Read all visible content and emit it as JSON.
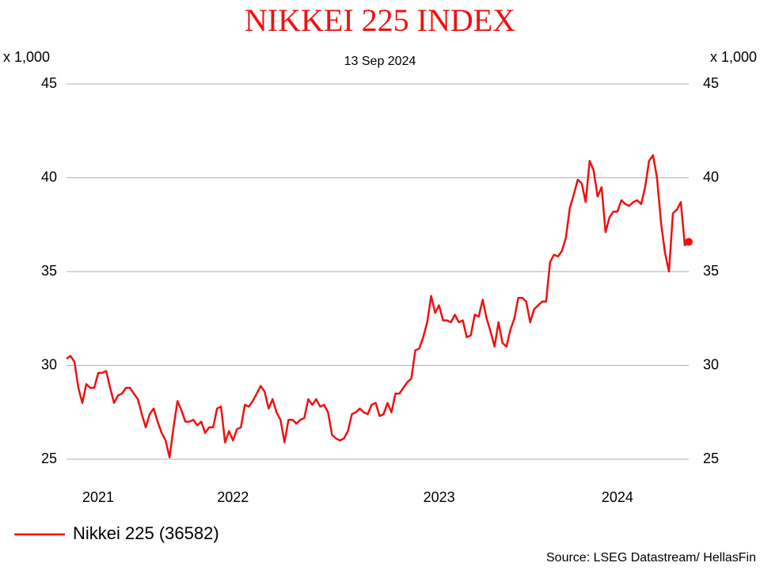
{
  "chart_data": {
    "type": "line",
    "title": "NIKKEI 225 INDEX",
    "subtitle": "13 Sep 2024",
    "y_unit": "x 1,000",
    "source": "Source: LSEG Datastream/ HellasFin",
    "ylim": [
      25,
      45
    ],
    "yticks": [
      25,
      30,
      35,
      40,
      45
    ],
    "grid": true,
    "legend": "bottom-left",
    "end_marker": true,
    "categories": [
      null,
      null,
      null,
      null,
      null,
      null,
      null,
      null,
      "2021",
      null,
      null,
      null,
      null,
      null,
      null,
      null,
      null,
      null,
      null,
      null,
      null,
      null,
      null,
      null,
      null,
      null,
      null,
      null,
      null,
      null,
      null,
      null,
      null,
      null,
      null,
      null,
      null,
      null,
      null,
      null,
      null,
      null,
      "2022",
      null,
      null,
      null,
      null,
      null,
      null,
      null,
      null,
      null,
      null,
      null,
      null,
      null,
      null,
      null,
      null,
      null,
      null,
      null,
      null,
      null,
      null,
      null,
      null,
      null,
      null,
      null,
      null,
      null,
      null,
      null,
      null,
      null,
      null,
      null,
      null,
      null,
      null,
      null,
      null,
      null,
      null,
      null,
      null,
      null,
      null,
      null,
      null,
      null,
      null,
      null,
      "2023",
      null,
      null,
      null,
      null,
      null,
      null,
      null,
      null,
      null,
      null,
      null,
      null,
      null,
      null,
      null,
      null,
      null,
      null,
      null,
      null,
      null,
      null,
      null,
      null,
      null,
      null,
      null,
      null,
      null,
      null,
      null,
      null,
      null,
      null,
      null,
      null,
      null,
      null,
      null,
      null,
      null,
      null,
      null,
      null,
      "2024",
      null,
      null,
      null,
      null,
      null,
      null,
      null,
      null,
      null,
      null,
      null,
      null,
      null,
      null,
      null,
      null,
      null,
      null
    ],
    "series": [
      {
        "name": "Nikkei 225 (36582)",
        "color": "#ee1111",
        "values": [
          30.36,
          30.5,
          30.2,
          28.8,
          28.0,
          29.0,
          28.8,
          28.8,
          29.6,
          29.6,
          29.7,
          28.8,
          28.0,
          28.4,
          28.5,
          28.8,
          28.8,
          28.5,
          28.2,
          27.4,
          26.7,
          27.4,
          27.7,
          27.0,
          26.4,
          26.0,
          25.1,
          26.7,
          28.1,
          27.6,
          27.0,
          27.0,
          27.1,
          26.8,
          27.0,
          26.4,
          26.7,
          26.7,
          27.7,
          27.8,
          25.9,
          26.5,
          26.0,
          26.6,
          26.7,
          27.9,
          27.8,
          28.1,
          28.5,
          28.9,
          28.6,
          27.7,
          28.2,
          27.5,
          27.1,
          25.9,
          27.1,
          27.1,
          26.9,
          27.1,
          27.2,
          28.2,
          27.9,
          28.2,
          27.8,
          27.9,
          27.5,
          26.3,
          26.1,
          26.0,
          26.1,
          26.5,
          27.4,
          27.5,
          27.7,
          27.5,
          27.4,
          27.9,
          28.0,
          27.3,
          27.4,
          28.0,
          27.5,
          28.5,
          28.5,
          28.8,
          29.1,
          29.3,
          30.8,
          30.9,
          31.5,
          32.3,
          33.7,
          32.8,
          33.2,
          32.4,
          32.4,
          32.3,
          32.7,
          32.3,
          32.4,
          31.5,
          31.6,
          32.7,
          32.6,
          33.5,
          32.5,
          31.8,
          31.0,
          32.3,
          31.2,
          31.0,
          31.9,
          32.5,
          33.6,
          33.6,
          33.4,
          32.3,
          33.0,
          33.2,
          33.4,
          33.4,
          35.5,
          35.9,
          35.8,
          36.1,
          36.8,
          38.4,
          39.1,
          39.9,
          39.7,
          38.7,
          40.9,
          40.4,
          39.0,
          39.5,
          37.1,
          37.9,
          38.2,
          38.2,
          38.8,
          38.6,
          38.5,
          38.7,
          38.8,
          38.6,
          39.5,
          40.9,
          41.2,
          40.0,
          37.6,
          36.0,
          35.0,
          38.1,
          38.3,
          38.7,
          36.4,
          36.582
        ]
      }
    ]
  }
}
